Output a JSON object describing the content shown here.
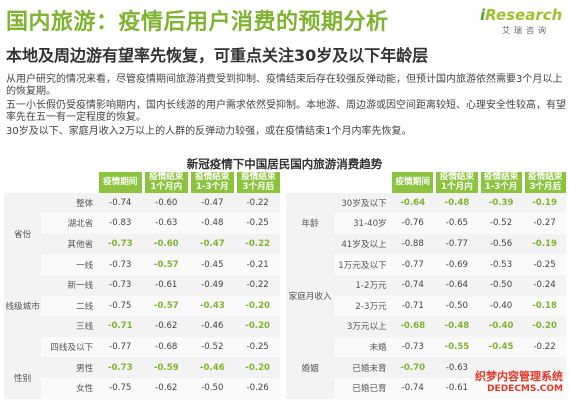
{
  "header": {
    "title": "国内旅游：疫情后用户消费的预期分析",
    "subtitle": "本地及周边游有望率先恢复，可重点关注30岁及以下年龄层",
    "logo_brand_i": "i",
    "logo_brand_rest": "Research",
    "logo_sub": "艾瑞咨询"
  },
  "paragraphs": [
    "从用户研究的情况来看，尽管疫情期间旅游消费受到抑制、疫情结束后存在较强反弹动能，但预计国内旅游依然需要3个月以上的恢复期。",
    "五一小长假仍受疫情影响期内，国内长线游的用户需求依然受抑制。本地游、周边游或因空间距离较短、心理安全性较高，有望率先在五一有一定程度的恢复。",
    "30岁及以下、家庭月收入2万以上的人群的反弹动力较强，或在疫情结束1个月内率先恢复。"
  ],
  "table_title": "新冠疫情下中国居民国内旅游消费趋势",
  "columns": [
    "疫情期间",
    "疫情结束\n1个月内",
    "疫情结束\n1-3个月",
    "疫情结束\n3个月后"
  ],
  "left_table": [
    {
      "group": "",
      "label": "整体",
      "values": [
        "-0.74",
        "-0.60",
        "-0.47",
        "-0.22"
      ],
      "hl": [
        false,
        false,
        false,
        false
      ]
    },
    {
      "group": "省份",
      "label": "湖北省",
      "values": [
        "-0.83",
        "-0.63",
        "-0.48",
        "-0.25"
      ],
      "hl": [
        false,
        false,
        false,
        false
      ]
    },
    {
      "group": "",
      "label": "其他省",
      "values": [
        "-0.73",
        "-0.60",
        "-0.47",
        "-0.22"
      ],
      "hl": [
        true,
        true,
        true,
        true
      ]
    },
    {
      "group": "",
      "label": "一线",
      "values": [
        "-0.73",
        "-0.57",
        "-0.45",
        "-0.21"
      ],
      "hl": [
        false,
        true,
        false,
        false
      ]
    },
    {
      "group": "",
      "label": "新一线",
      "values": [
        "-0.73",
        "-0.61",
        "-0.49",
        "-0.22"
      ],
      "hl": [
        false,
        false,
        false,
        false
      ]
    },
    {
      "group": "线级城市",
      "label": "二线",
      "values": [
        "-0.75",
        "-0.57",
        "-0.43",
        "-0.20"
      ],
      "hl": [
        false,
        true,
        true,
        true
      ]
    },
    {
      "group": "",
      "label": "三线",
      "values": [
        "-0.71",
        "-0.62",
        "-0.46",
        "-0.20"
      ],
      "hl": [
        true,
        false,
        false,
        true
      ]
    },
    {
      "group": "",
      "label": "四线及以下",
      "values": [
        "-0.77",
        "-0.68",
        "-0.52",
        "-0.25"
      ],
      "hl": [
        false,
        false,
        false,
        false
      ]
    },
    {
      "group": "性别",
      "label": "男性",
      "values": [
        "-0.73",
        "-0.59",
        "-0.46",
        "-0.20"
      ],
      "hl": [
        true,
        true,
        true,
        true
      ]
    },
    {
      "group": "",
      "label": "女性",
      "values": [
        "-0.75",
        "-0.62",
        "-0.50",
        "-0.26"
      ],
      "hl": [
        false,
        false,
        false,
        false
      ]
    }
  ],
  "right_table": [
    {
      "group": "",
      "label": "30岁及以下",
      "values": [
        "-0.64",
        "-0.48",
        "-0.39",
        "-0.19"
      ],
      "hl": [
        true,
        true,
        true,
        true
      ]
    },
    {
      "group": "年龄",
      "label": "31-40岁",
      "values": [
        "-0.76",
        "-0.65",
        "-0.52",
        "-0.27"
      ],
      "hl": [
        false,
        false,
        false,
        false
      ]
    },
    {
      "group": "",
      "label": "41岁及以上",
      "values": [
        "-0.88",
        "-0.77",
        "-0.56",
        "-0.19"
      ],
      "hl": [
        false,
        false,
        false,
        true
      ]
    },
    {
      "group": "",
      "label": "1万元及以下",
      "values": [
        "-0.77",
        "-0.69",
        "-0.53",
        "-0.25"
      ],
      "hl": [
        false,
        false,
        false,
        false
      ]
    },
    {
      "group": "家庭月收入",
      "label": "1-2万元",
      "values": [
        "-0.74",
        "-0.64",
        "-0.50",
        "-0.24"
      ],
      "hl": [
        false,
        false,
        false,
        false
      ]
    },
    {
      "group": "",
      "label": "2-3万元",
      "values": [
        "-0.71",
        "-0.50",
        "-0.40",
        "-0.18"
      ],
      "hl": [
        false,
        false,
        false,
        true
      ]
    },
    {
      "group": "",
      "label": "3万元以上",
      "values": [
        "-0.68",
        "-0.48",
        "-0.40",
        "-0.20"
      ],
      "hl": [
        true,
        true,
        true,
        true
      ]
    },
    {
      "group": "",
      "label": "未婚",
      "values": [
        "-0.73",
        "-0.55",
        "-0.45",
        "-0.22"
      ],
      "hl": [
        false,
        true,
        true,
        false
      ]
    },
    {
      "group": "婚姻",
      "label": "已婚未育",
      "values": [
        "-0.70",
        "-0.63",
        "",
        ""
      ],
      "hl": [
        true,
        false,
        false,
        false
      ]
    },
    {
      "group": "",
      "label": "已婚已育",
      "values": [
        "-0.74",
        "-0.61",
        "",
        ""
      ],
      "hl": [
        false,
        false,
        false,
        false
      ]
    }
  ],
  "watermark": {
    "line1": "织梦内容管理系统",
    "line2": "DEDECMS.COM"
  }
}
